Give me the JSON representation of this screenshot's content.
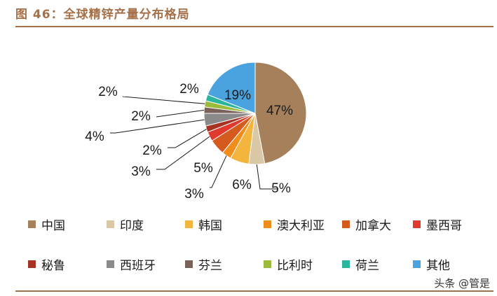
{
  "figure": {
    "title": "图 46：全球精锌产量分布格局",
    "watermark": "头条 @管是"
  },
  "chart_data": {
    "type": "pie",
    "title": "",
    "slices": [
      {
        "label": "中国",
        "value": 47,
        "display": "47%",
        "color": "#a5805b"
      },
      {
        "label": "印度",
        "value": 5,
        "display": "5%",
        "color": "#d9c7a6"
      },
      {
        "label": "韩国",
        "value": 6,
        "display": "6%",
        "color": "#f3b53d"
      },
      {
        "label": "澳大利亚",
        "value": 3,
        "display": "3%",
        "color": "#f08d1b"
      },
      {
        "label": "加拿大",
        "value": 5,
        "display": "5%",
        "color": "#d45a1e"
      },
      {
        "label": "墨西哥",
        "value": 3,
        "display": "3%",
        "color": "#e03a2f"
      },
      {
        "label": "秘鲁",
        "value": 2,
        "display": "2%",
        "color": "#a83221"
      },
      {
        "label": "西班牙",
        "value": 4,
        "display": "4%",
        "color": "#8a8a8a"
      },
      {
        "label": "芬兰",
        "value": 2,
        "display": "2%",
        "color": "#7a6258"
      },
      {
        "label": "比利时",
        "value": 2,
        "display": "2%",
        "color": "#9dbb3b"
      },
      {
        "label": "荷兰",
        "value": 2,
        "display": "2%",
        "color": "#2ab59e"
      },
      {
        "label": "其他",
        "value": 19,
        "display": "19%",
        "color": "#4aa3df"
      }
    ],
    "legend_placement": "bottom"
  }
}
